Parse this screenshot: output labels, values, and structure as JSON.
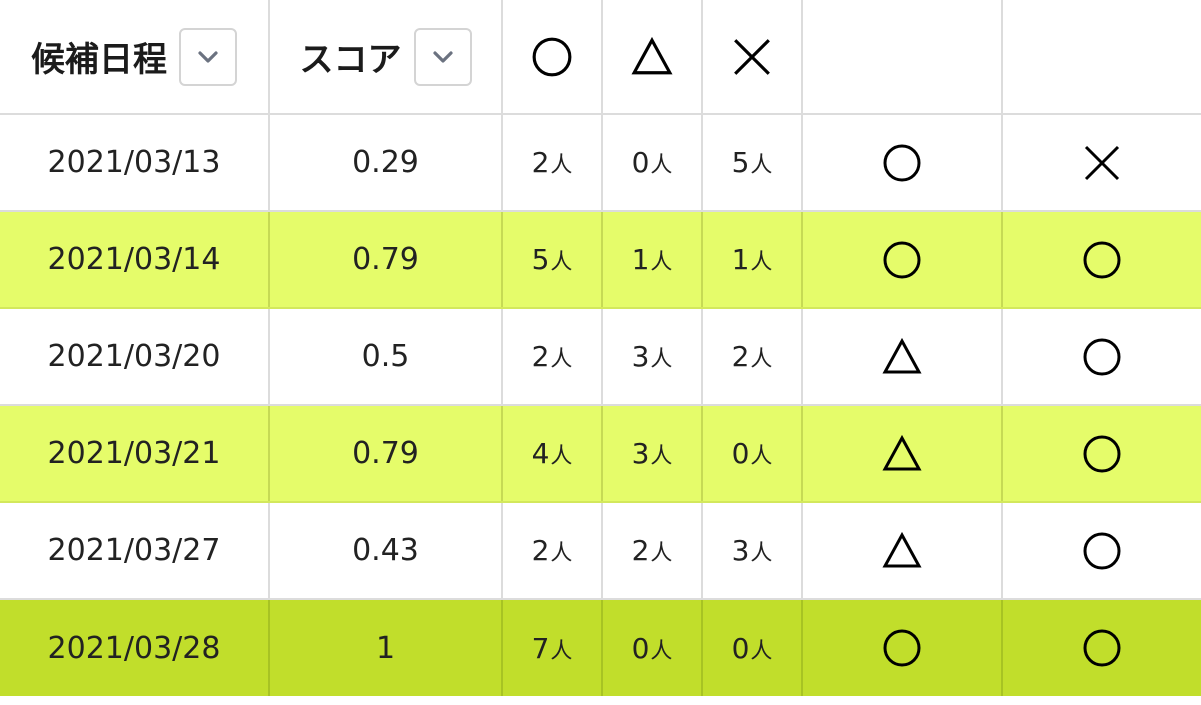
{
  "header": {
    "date_label": "候補日程",
    "score_label": "スコア",
    "ok_symbol": "circle",
    "maybe_symbol": "triangle",
    "ng_symbol": "cross"
  },
  "unit": "人",
  "colors": {
    "highlight_light": "#e5fc6a",
    "highlight_strong": "#c1de2b",
    "grid": "#dcdcdc",
    "sort_chevron": "#6b7280"
  },
  "rows": [
    {
      "date": "2021/03/13",
      "score": "0.29",
      "ok": "2",
      "maybe": "0",
      "ng": "5",
      "p1": "circle",
      "p2": "cross",
      "highlight": "none"
    },
    {
      "date": "2021/03/14",
      "score": "0.79",
      "ok": "5",
      "maybe": "1",
      "ng": "1",
      "p1": "circle",
      "p2": "circle",
      "highlight": "light"
    },
    {
      "date": "2021/03/20",
      "score": "0.5",
      "ok": "2",
      "maybe": "3",
      "ng": "2",
      "p1": "triangle",
      "p2": "circle",
      "highlight": "none"
    },
    {
      "date": "2021/03/21",
      "score": "0.79",
      "ok": "4",
      "maybe": "3",
      "ng": "0",
      "p1": "triangle",
      "p2": "circle",
      "highlight": "light"
    },
    {
      "date": "2021/03/27",
      "score": "0.43",
      "ok": "2",
      "maybe": "2",
      "ng": "3",
      "p1": "triangle",
      "p2": "circle",
      "highlight": "none"
    },
    {
      "date": "2021/03/28",
      "score": "1",
      "ok": "7",
      "maybe": "0",
      "ng": "0",
      "p1": "circle",
      "p2": "circle",
      "highlight": "strong"
    }
  ]
}
